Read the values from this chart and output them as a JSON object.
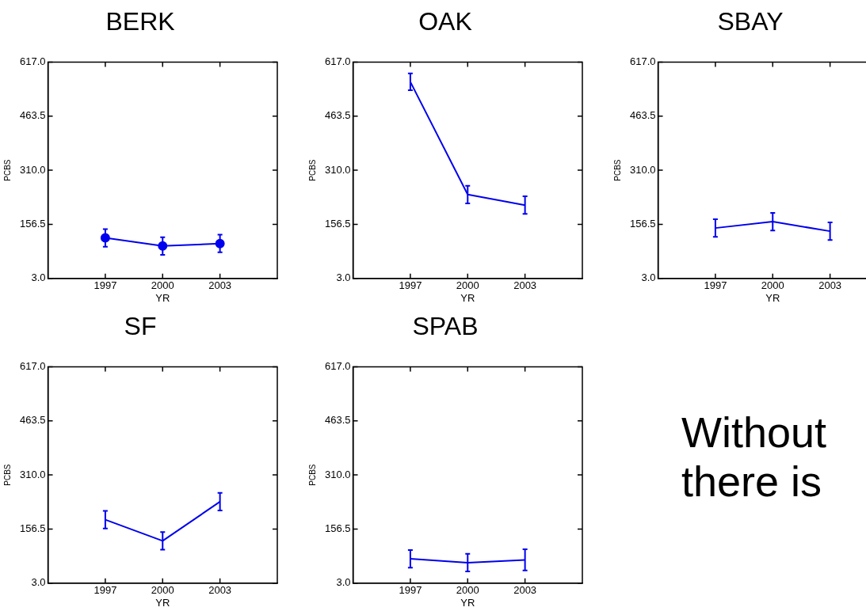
{
  "chart_data": [
    {
      "type": "line",
      "title": "BERK",
      "xlabel": "YR",
      "ylabel": "PCBS",
      "x": [
        1997,
        2000,
        2003
      ],
      "marker": "circle",
      "grid": false,
      "legend": false,
      "series": [
        {
          "color": "#0000ee",
          "values": [
            118,
            95,
            102
          ],
          "errors": [
            25,
            25,
            25
          ]
        }
      ],
      "xlim": [
        1994,
        2006
      ],
      "xticks": [
        1997,
        2000,
        2003
      ],
      "ylim": [
        3,
        617
      ],
      "yticks": [
        {
          "value": 3,
          "label": "3.0"
        },
        {
          "value": 156.5,
          "label": "156.5"
        },
        {
          "value": 310,
          "label": "310.0"
        },
        {
          "value": 463.5,
          "label": "463.5"
        },
        {
          "value": 617,
          "label": "617.0"
        }
      ]
    },
    {
      "type": "line",
      "title": "OAK",
      "xlabel": "YR",
      "ylabel": "PCBS",
      "x": [
        1997,
        2000,
        2003
      ],
      "marker": "none",
      "grid": false,
      "legend": false,
      "series": [
        {
          "color": "#0000ee",
          "values": [
            561,
            241,
            211
          ],
          "errors": [
            24,
            25,
            25
          ]
        }
      ],
      "xlim": [
        1994,
        2006
      ],
      "xticks": [
        1997,
        2000,
        2003
      ],
      "ylim": [
        3,
        617
      ],
      "yticks": [
        {
          "value": 3,
          "label": "3.0"
        },
        {
          "value": 156.5,
          "label": "156.5"
        },
        {
          "value": 310,
          "label": "310.0"
        },
        {
          "value": 463.5,
          "label": "463.5"
        },
        {
          "value": 617,
          "label": "617.0"
        }
      ]
    },
    {
      "type": "line",
      "title": "SBAY",
      "xlabel": "YR",
      "ylabel": "PCBS",
      "x": [
        1997,
        2000,
        2003
      ],
      "marker": "none",
      "grid": false,
      "legend": false,
      "series": [
        {
          "color": "#0000ee",
          "values": [
            146,
            164,
            137
          ],
          "errors": [
            25,
            25,
            25
          ]
        }
      ],
      "xlim": [
        1994,
        2006
      ],
      "xticks": [
        1997,
        2000,
        2003
      ],
      "ylim": [
        3,
        617
      ],
      "yticks": [
        {
          "value": 3,
          "label": "3.0"
        },
        {
          "value": 156.5,
          "label": "156.5"
        },
        {
          "value": 310,
          "label": "310.0"
        },
        {
          "value": 463.5,
          "label": "463.5"
        },
        {
          "value": 617,
          "label": "617.0"
        }
      ]
    },
    {
      "type": "line",
      "title": "SF",
      "xlabel": "YR",
      "ylabel": "PCBS",
      "x": [
        1997,
        2000,
        2003
      ],
      "marker": "none",
      "grid": false,
      "legend": false,
      "series": [
        {
          "color": "#0000ee",
          "values": [
            183,
            123,
            234
          ],
          "errors": [
            25,
            25,
            25
          ]
        }
      ],
      "xlim": [
        1994,
        2006
      ],
      "xticks": [
        1997,
        2000,
        2003
      ],
      "ylim": [
        3,
        617
      ],
      "yticks": [
        {
          "value": 3,
          "label": "3.0"
        },
        {
          "value": 156.5,
          "label": "156.5"
        },
        {
          "value": 310,
          "label": "310.0"
        },
        {
          "value": 463.5,
          "label": "463.5"
        },
        {
          "value": 617,
          "label": "617.0"
        }
      ]
    },
    {
      "type": "line",
      "title": "SPAB",
      "xlabel": "YR",
      "ylabel": "PCBS",
      "x": [
        1997,
        2000,
        2003
      ],
      "marker": "none",
      "grid": false,
      "legend": false,
      "series": [
        {
          "color": "#0000ee",
          "values": [
            72,
            61,
            69
          ],
          "errors": [
            25,
            25,
            30
          ]
        }
      ],
      "xlim": [
        1994,
        2006
      ],
      "xticks": [
        1997,
        2000,
        2003
      ],
      "ylim": [
        3,
        617
      ],
      "yticks": [
        {
          "value": 3,
          "label": "3.0"
        },
        {
          "value": 156.5,
          "label": "156.5"
        },
        {
          "value": 310,
          "label": "310.0"
        },
        {
          "value": 463.5,
          "label": "463.5"
        },
        {
          "value": 617,
          "label": "617.0"
        }
      ]
    },
    {
      "type": "other",
      "annotations": [
        "Without",
        "there is"
      ]
    }
  ]
}
